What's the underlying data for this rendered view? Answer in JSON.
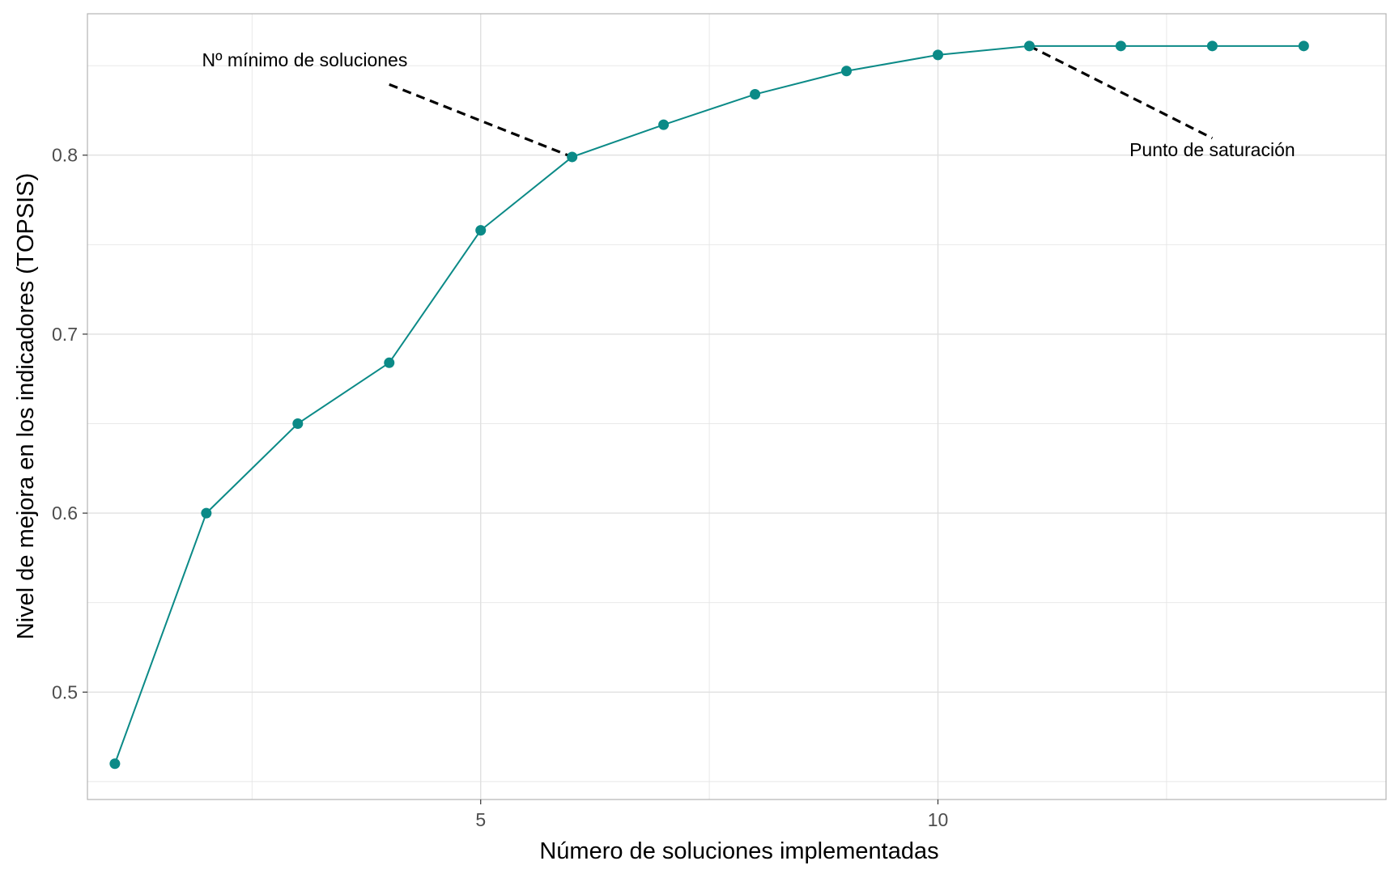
{
  "chart_data": {
    "type": "line",
    "title": "",
    "xlabel": "Número de soluciones implementadas",
    "ylabel": "Nivel de mejora en los indicadores (TOPSIS)",
    "xlim": [
      0.7,
      14.9
    ],
    "ylim": [
      0.44,
      0.879
    ],
    "x_major_ticks": [
      5,
      10
    ],
    "x_minor_ticks": [
      2.5,
      7.5,
      12.5
    ],
    "y_major_ticks": [
      0.5,
      0.6,
      0.7,
      0.8
    ],
    "y_minor_ticks": [
      0.45,
      0.55,
      0.65,
      0.75,
      0.85
    ],
    "x_tick_labels": [
      "5",
      "10"
    ],
    "y_tick_labels": [
      "0.5",
      "0.6",
      "0.7",
      "0.8"
    ],
    "grid": true,
    "colors": {
      "series": "#0b8a87",
      "point": "#0b8a87",
      "grid": "#e6e6e6",
      "panel_border": "#b3b3b3",
      "annotation_line": "#000000",
      "tick_label": "#4d4d4d"
    },
    "series": [
      {
        "x": [
          1,
          2,
          3,
          4,
          5,
          6,
          7,
          8,
          9,
          10,
          11,
          12,
          13,
          14
        ],
        "y": [
          0.46,
          0.6,
          0.65,
          0.684,
          0.758,
          0.799,
          0.817,
          0.834,
          0.847,
          0.856,
          0.861,
          0.861,
          0.861,
          0.861
        ]
      }
    ],
    "annotations": [
      {
        "text": "Nº mínimo de soluciones",
        "text_x": 4.2,
        "text_y": 0.8495,
        "anchor": "end",
        "line": {
          "x1": 4.0,
          "y1": 0.8395,
          "x2": 6.0,
          "y2": 0.799
        }
      },
      {
        "text": "Punto de saturación",
        "text_x": 13.0,
        "text_y": 0.7995,
        "anchor": "middle",
        "line": {
          "x1": 11.0,
          "y1": 0.861,
          "x2": 13.0,
          "y2": 0.8095
        }
      }
    ]
  }
}
